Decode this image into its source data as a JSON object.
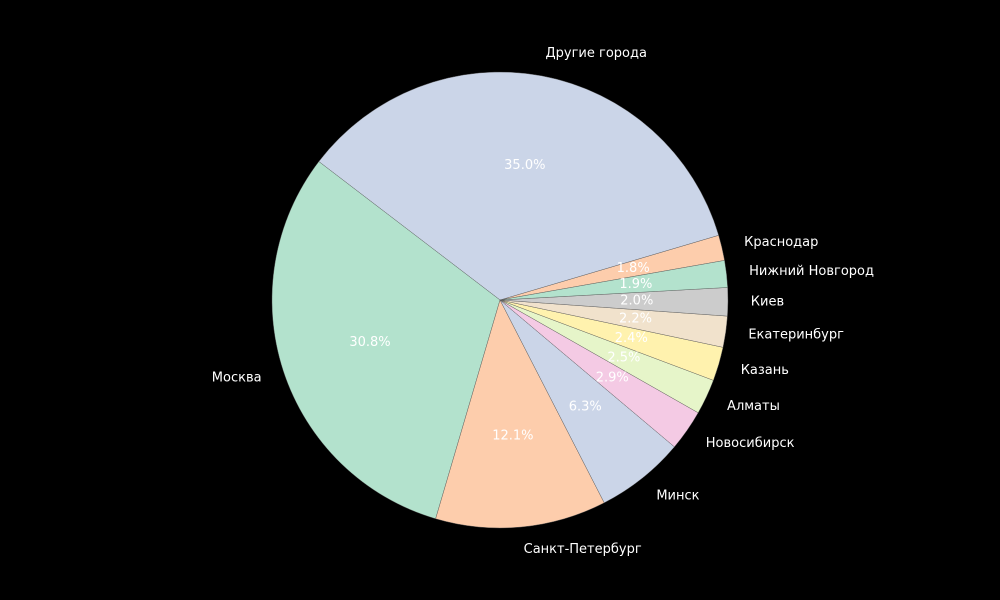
{
  "chart_data": {
    "type": "pie",
    "start_angle_deg": 10,
    "direction": "counterclockwise",
    "slices": [
      {
        "label": "Краснодар",
        "value": 1.8,
        "pct_label": "1.8%",
        "color": "#fdcdac"
      },
      {
        "label": "Другие города",
        "value": 35.0,
        "pct_label": "35.0%",
        "color": "#cbd5e8"
      },
      {
        "label": "Москва",
        "value": 30.8,
        "pct_label": "30.8%",
        "color": "#b3e2cd"
      },
      {
        "label": "Санкт-Петербург",
        "value": 12.1,
        "pct_label": "12.1%",
        "color": "#fdcdac"
      },
      {
        "label": "Минск",
        "value": 6.3,
        "pct_label": "6.3%",
        "color": "#cbd5e8"
      },
      {
        "label": "Новосибирск",
        "value": 2.9,
        "pct_label": "2.9%",
        "color": "#f4cae4"
      },
      {
        "label": "Алматы",
        "value": 2.5,
        "pct_label": "2.5%",
        "color": "#e6f5c9"
      },
      {
        "label": "Казань",
        "value": 2.4,
        "pct_label": "2.4%",
        "color": "#fff2ae"
      },
      {
        "label": "Екатеринбург",
        "value": 2.2,
        "pct_label": "2.2%",
        "color": "#f1e2cc"
      },
      {
        "label": "Киев",
        "value": 2.0,
        "pct_label": "2.0%",
        "color": "#cccccc"
      },
      {
        "label": "Нижний Новгород",
        "value": 1.9,
        "pct_label": "1.9%",
        "color": "#b3e2cd"
      }
    ],
    "title": "",
    "background": "#000000",
    "label_color": "#ffffff"
  }
}
